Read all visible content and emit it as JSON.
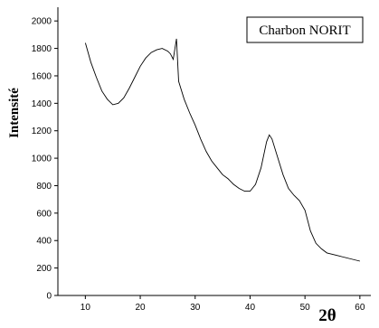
{
  "chart_data": {
    "type": "line",
    "title": "",
    "xlabel": "2θ",
    "ylabel": "Intensité",
    "xlim": [
      5,
      62
    ],
    "ylim": [
      0,
      2100
    ],
    "x_ticks": [
      10,
      20,
      30,
      40,
      50,
      60
    ],
    "y_ticks": [
      0,
      200,
      400,
      600,
      800,
      1000,
      1200,
      1400,
      1600,
      1800,
      2000
    ],
    "grid": false,
    "legend_position": "top-right",
    "series": [
      {
        "name": "Charbon NORIT",
        "color": "#000000",
        "x": [
          10,
          11,
          12,
          13,
          14,
          15,
          16,
          17,
          18,
          19,
          20,
          21,
          22,
          23,
          24,
          25,
          25.5,
          26,
          26.6,
          27,
          28,
          29,
          30,
          31,
          32,
          33,
          34,
          35,
          36,
          37,
          38,
          39,
          40,
          41,
          42,
          43,
          43.5,
          44,
          45,
          46,
          47,
          48,
          49,
          50,
          51,
          52,
          53,
          54,
          55,
          56,
          57,
          58,
          59,
          60
        ],
        "values": [
          1840,
          1700,
          1590,
          1490,
          1430,
          1390,
          1400,
          1440,
          1510,
          1590,
          1670,
          1730,
          1770,
          1790,
          1800,
          1780,
          1760,
          1720,
          1870,
          1560,
          1430,
          1330,
          1240,
          1140,
          1050,
          980,
          930,
          880,
          850,
          810,
          780,
          760,
          760,
          810,
          930,
          1120,
          1170,
          1140,
          1010,
          880,
          780,
          730,
          690,
          620,
          470,
          380,
          340,
          310,
          300,
          290,
          280,
          270,
          260,
          250
        ]
      }
    ]
  }
}
